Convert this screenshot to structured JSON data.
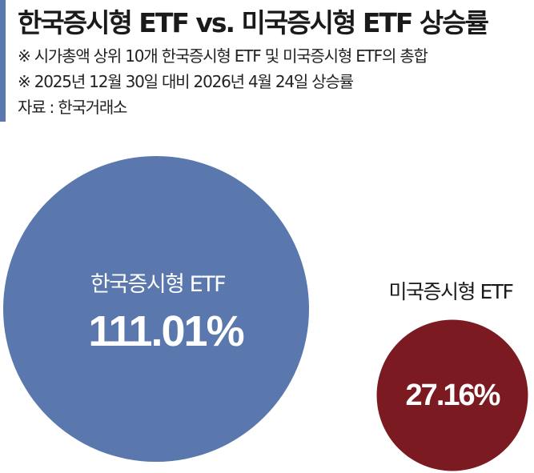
{
  "header": {
    "title": "한국증시형 ETF vs. 미국증시형 ETF 상승률",
    "notes": [
      "※ 시가총액 상위 10개 한국증시형 ETF 및 미국증시형 ETF의 총합",
      "※ 2025년 12월 30일 대비 2026년 4월 24일 상승률"
    ],
    "source": "자료 : 한국거래소"
  },
  "chart_data": {
    "type": "bubble",
    "unit": "%",
    "series": [
      {
        "name": "한국증시형 ETF",
        "value": 111.01,
        "label": "111.01%",
        "color": "#5a78ae"
      },
      {
        "name": "미국증시형 ETF",
        "value": 27.16,
        "label": "27.16%",
        "color": "#7b1b21"
      }
    ]
  }
}
